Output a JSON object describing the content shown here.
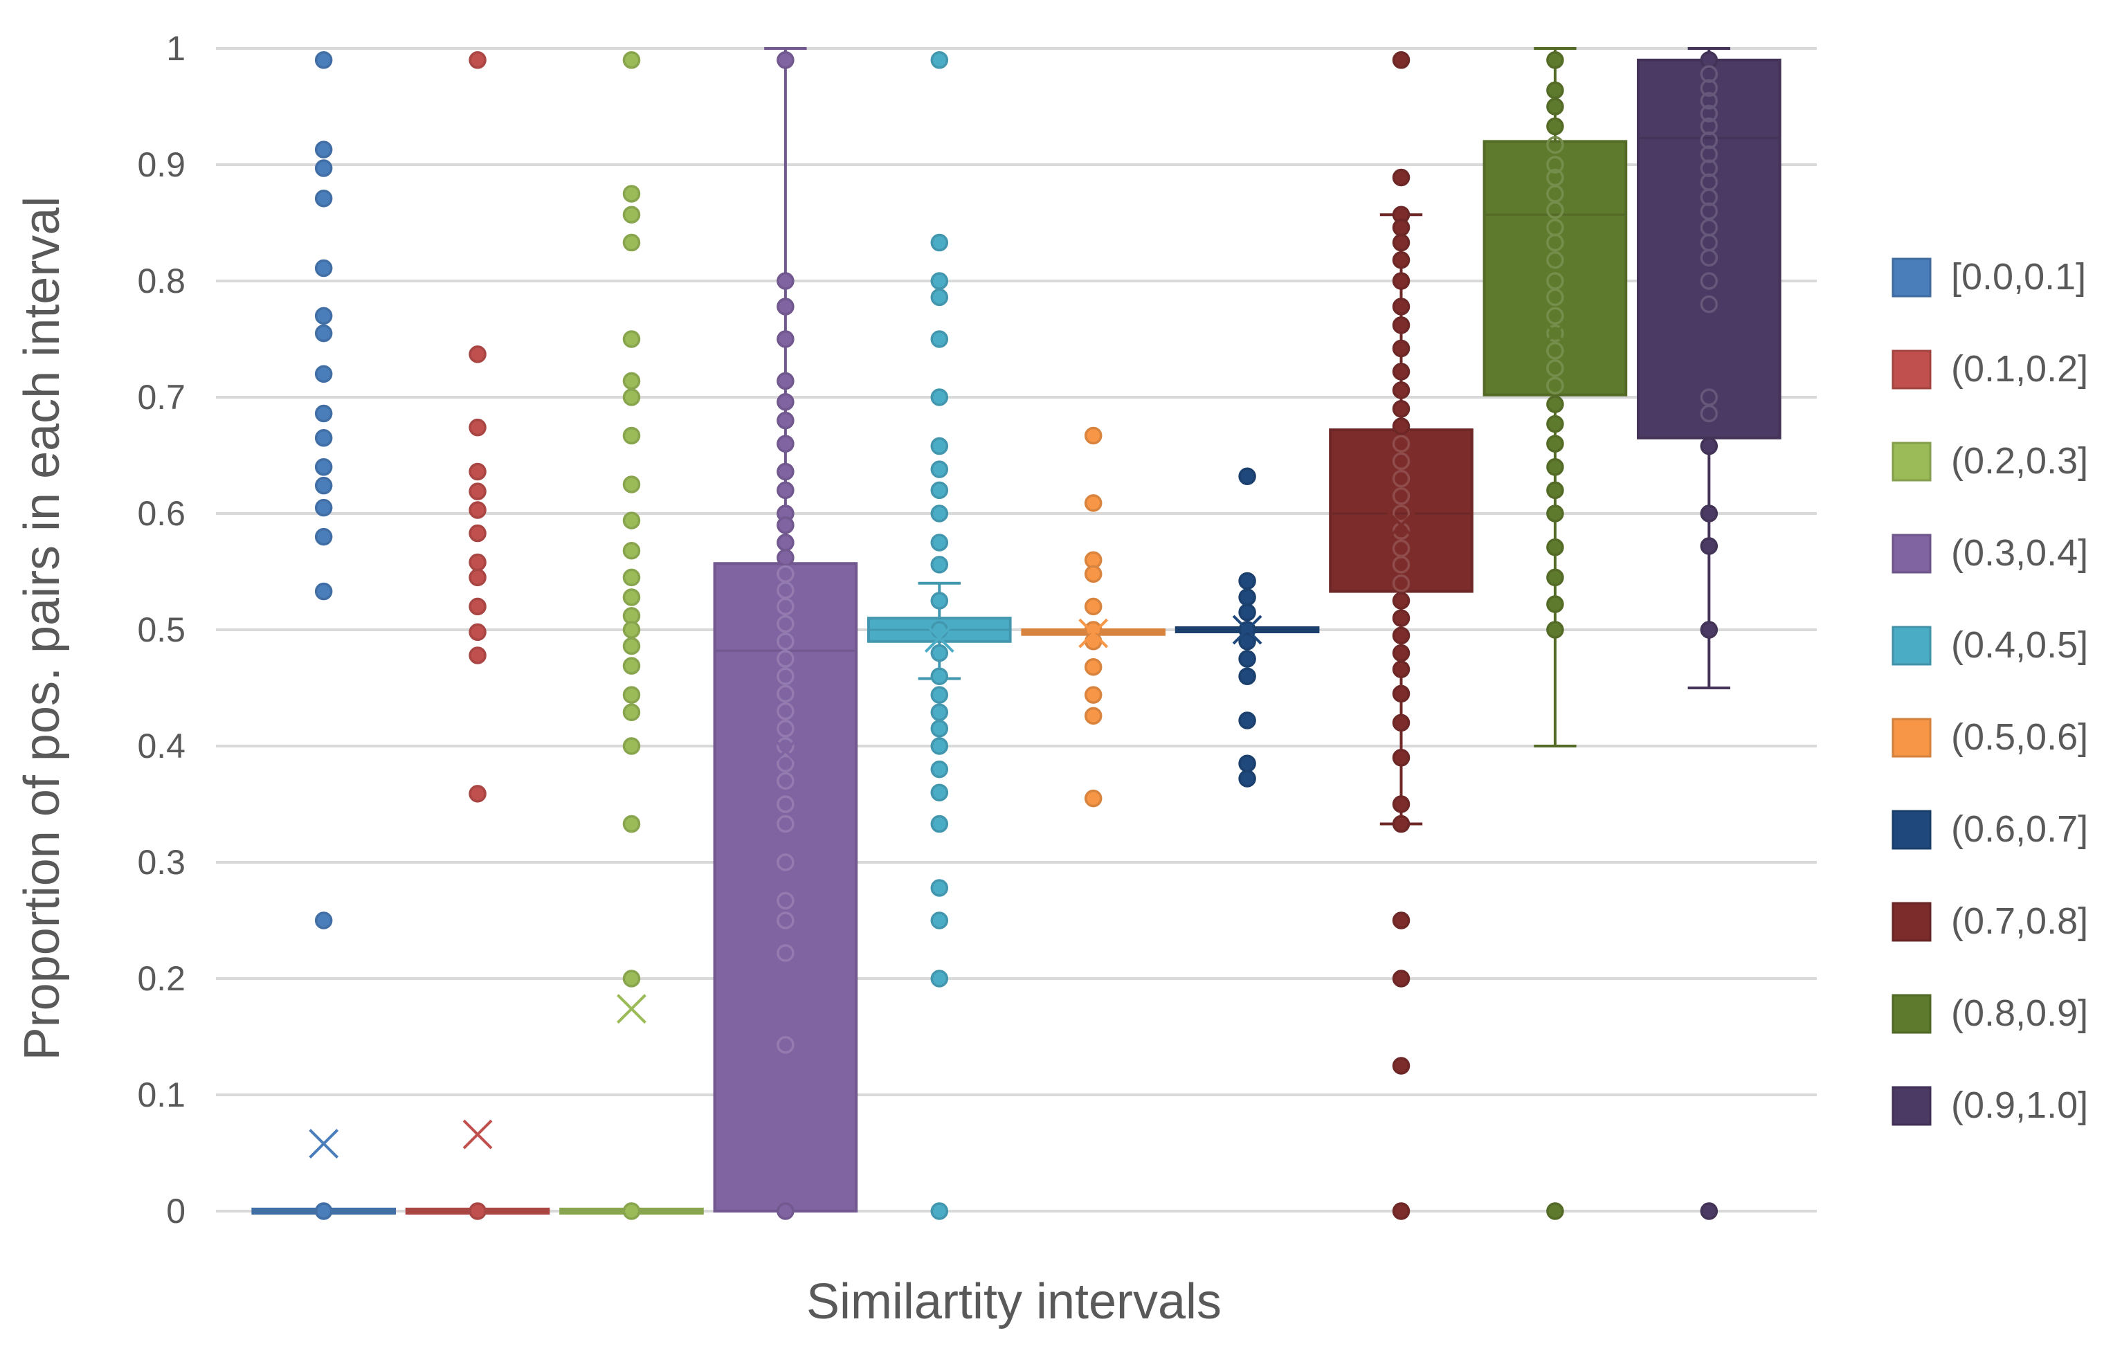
{
  "chart_data": {
    "type": "box",
    "title": "",
    "xlabel": "Similartity intervals",
    "ylabel": "Proportion of pos. pairs in each interval",
    "ylim": [
      0,
      1
    ],
    "yticks": [
      "0",
      "0.1",
      "0.2",
      "0.3",
      "0.4",
      "0.5",
      "0.6",
      "0.7",
      "0.8",
      "0.9",
      "1"
    ],
    "grid": true,
    "legend_position": "right",
    "series": [
      {
        "name": "[0.0,0.1]",
        "color": "#4a7ebb",
        "q1": 0,
        "median": 0,
        "q3": 0,
        "whisker_low": 0,
        "whisker_high": 0,
        "mean": 0.058,
        "points": [
          0.99,
          0.913,
          0.897,
          0.871,
          0.811,
          0.77,
          0.755,
          0.72,
          0.686,
          0.665,
          0.64,
          0.624,
          0.605,
          0.58,
          0.533,
          0.25,
          0
        ]
      },
      {
        "name": "(0.1,0.2]",
        "color": "#c0504d",
        "q1": 0,
        "median": 0,
        "q3": 0,
        "whisker_low": 0,
        "whisker_high": 0,
        "mean": 0.066,
        "points": [
          0.99,
          0.737,
          0.674,
          0.636,
          0.619,
          0.603,
          0.583,
          0.558,
          0.545,
          0.52,
          0.498,
          0.478,
          0.359,
          0
        ]
      },
      {
        "name": "(0.2,0.3]",
        "color": "#9bbb59",
        "q1": 0,
        "median": 0,
        "q3": 0,
        "whisker_low": 0,
        "whisker_high": 0,
        "mean": 0.174,
        "points": [
          0.99,
          0.875,
          0.857,
          0.833,
          0.75,
          0.714,
          0.7,
          0.667,
          0.625,
          0.594,
          0.568,
          0.545,
          0.528,
          0.512,
          0.5,
          0.486,
          0.469,
          0.444,
          0.429,
          0.4,
          0.333,
          0.2,
          0
        ]
      },
      {
        "name": "(0.3,0.4]",
        "color": "#8064a2",
        "q1": 0,
        "median": 0.482,
        "q3": 0.557,
        "whisker_low": 0,
        "whisker_high": 1.0,
        "mean": 0.396,
        "points": [
          0.99,
          0.8,
          0.778,
          0.75,
          0.714,
          0.696,
          0.68,
          0.66,
          0.636,
          0.62,
          0.6,
          0.59,
          0.575,
          0.562,
          0.548,
          0.534,
          0.52,
          0.505,
          0.49,
          0.475,
          0.46,
          0.445,
          0.43,
          0.415,
          0.4,
          0.385,
          0.37,
          0.35,
          0.333,
          0.3,
          0.267,
          0.25,
          0.222,
          0.143,
          0
        ]
      },
      {
        "name": "(0.4,0.5]",
        "color": "#4bacc6",
        "q1": 0.49,
        "median": 0.5,
        "q3": 0.51,
        "whisker_low": 0.458,
        "whisker_high": 0.54,
        "mean": 0.493,
        "points": [
          0.99,
          0.833,
          0.8,
          0.786,
          0.75,
          0.7,
          0.658,
          0.638,
          0.62,
          0.6,
          0.575,
          0.556,
          0.525,
          0.5,
          0.48,
          0.46,
          0.444,
          0.429,
          0.415,
          0.4,
          0.38,
          0.36,
          0.333,
          0.278,
          0.25,
          0.2,
          0
        ]
      },
      {
        "name": "(0.5,0.6]",
        "color": "#f79646",
        "q1": 0.496,
        "median": 0.498,
        "q3": 0.5,
        "whisker_low": 0.496,
        "whisker_high": 0.5,
        "mean": 0.497,
        "points": [
          0.667,
          0.609,
          0.56,
          0.548,
          0.52,
          0.5,
          0.49,
          0.468,
          0.444,
          0.426,
          0.355
        ]
      },
      {
        "name": "(0.6,0.7]",
        "color": "#1f497d",
        "q1": 0.499,
        "median": 0.5,
        "q3": 0.501,
        "whisker_low": 0.499,
        "whisker_high": 0.501,
        "mean": 0.5,
        "points": [
          0.632,
          0.542,
          0.528,
          0.515,
          0.5,
          0.49,
          0.475,
          0.46,
          0.422,
          0.385,
          0.372
        ]
      },
      {
        "name": "(0.7,0.8]",
        "color": "#7b2c2b",
        "q1": 0.533,
        "median": 0.6,
        "q3": 0.672,
        "whisker_low": 0.333,
        "whisker_high": 0.857,
        "mean": 0.59,
        "points": [
          0.99,
          0.889,
          0.857,
          0.846,
          0.833,
          0.818,
          0.8,
          0.778,
          0.762,
          0.742,
          0.722,
          0.706,
          0.69,
          0.675,
          0.66,
          0.645,
          0.63,
          0.615,
          0.6,
          0.585,
          0.57,
          0.556,
          0.54,
          0.525,
          0.51,
          0.495,
          0.48,
          0.466,
          0.445,
          0.42,
          0.39,
          0.35,
          0.333,
          0.25,
          0.2,
          0.125,
          0
        ]
      },
      {
        "name": "(0.8,0.9]",
        "color": "#5e7a2c",
        "q1": 0.702,
        "median": 0.857,
        "q3": 0.92,
        "whisker_low": 0.4,
        "whisker_high": 1.0,
        "mean": 0.755,
        "points": [
          0.99,
          0.964,
          0.95,
          0.933,
          0.917,
          0.9,
          0.889,
          0.875,
          0.861,
          0.846,
          0.833,
          0.818,
          0.8,
          0.786,
          0.77,
          0.755,
          0.74,
          0.725,
          0.71,
          0.694,
          0.677,
          0.66,
          0.64,
          0.62,
          0.6,
          0.571,
          0.545,
          0.522,
          0.5,
          0
        ]
      },
      {
        "name": "(0.9,1.0]",
        "color": "#4b3a63",
        "q1": 0.665,
        "median": 0.923,
        "q3": 0.99,
        "whisker_low": 0.45,
        "whisker_high": 1.0,
        "mean": 0.72,
        "points": [
          0.99,
          0.978,
          0.966,
          0.955,
          0.944,
          0.933,
          0.921,
          0.909,
          0.897,
          0.885,
          0.872,
          0.86,
          0.846,
          0.833,
          0.82,
          0.8,
          0.78,
          0.7,
          0.686,
          0.658,
          0.6,
          0.572,
          0.5,
          0
        ]
      }
    ]
  }
}
